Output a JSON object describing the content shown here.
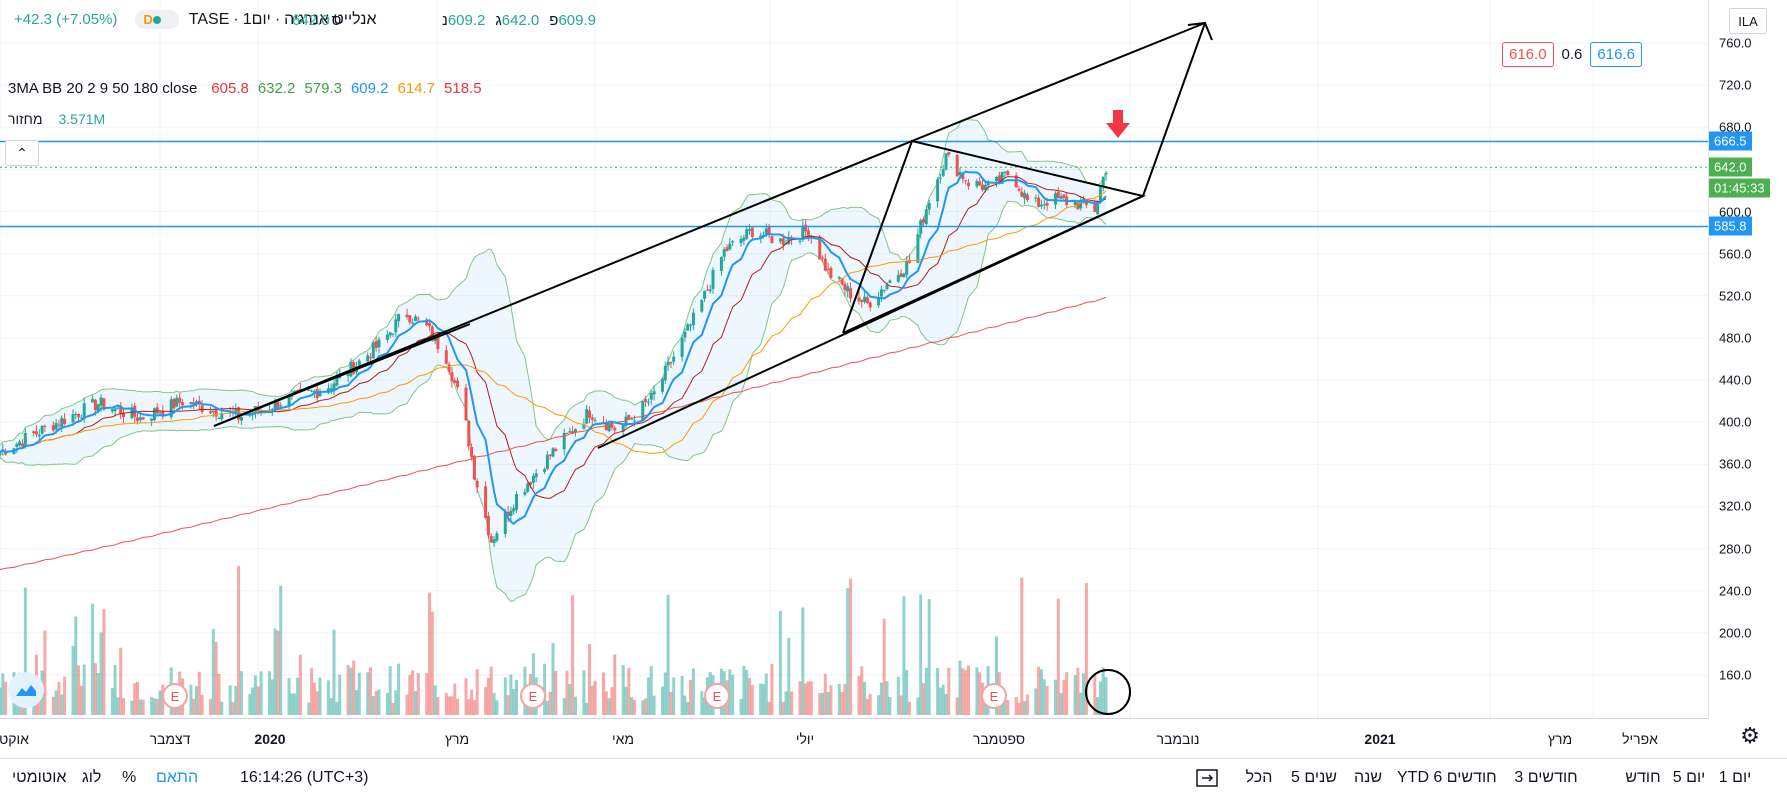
{
  "header": {
    "company": "אנלייט אנרגיה",
    "interval": "יום1",
    "exchange": "TASE",
    "delay_badge": "D",
    "ohlc": {
      "o_label": "פ",
      "o": "609.9",
      "h_label": "ג",
      "h": "642.0",
      "l_label": "נ",
      "l": "609.2",
      "c_label": "ס",
      "c": "642.0",
      "change": "+42.3 (+7.05%)"
    }
  },
  "indicators": {
    "name": "3MA BB 20 2 9 50 180 close",
    "values": [
      "605.8",
      "632.2",
      "579.3",
      "609.2",
      "614.7",
      "518.5"
    ],
    "colors": [
      "#e53935",
      "#43a047",
      "#43a047",
      "#2196f3",
      "#ff9800",
      "#e53935"
    ]
  },
  "volume": {
    "label": "מחזור",
    "value": "3.571M"
  },
  "bid_ask": {
    "bid": "616.0",
    "spread": "0.6",
    "ask": "616.6"
  },
  "price_axis": {
    "currency": "ILA",
    "ticks": [
      "760.0",
      "720.0",
      "680.0",
      "600.0",
      "560.0",
      "520.0",
      "480.0",
      "440.0",
      "400.0",
      "360.0",
      "320.0",
      "280.0",
      "240.0",
      "200.0",
      "160.0"
    ],
    "labels": [
      {
        "text": "666.5",
        "color": "#2196f3"
      },
      {
        "text": "642.0",
        "color": "#4caf50"
      },
      {
        "text": "01:45:33",
        "color": "#4caf50"
      },
      {
        "text": "585.8",
        "color": "#2196f3"
      }
    ]
  },
  "time_axis": [
    "אוקט",
    "דצמבר",
    "2020",
    "מרץ",
    "מאי",
    "יולי",
    "ספטמבר",
    "נובמבר",
    "2021",
    "מרץ",
    "אפריל"
  ],
  "events_label": "E",
  "bottom_bar": {
    "ranges": [
      "יום 1",
      "5 יום",
      "חודש",
      "3 חודשים",
      "6 חודשים",
      "YTD",
      "שנה",
      "5 שנים",
      "הכל"
    ],
    "clock": "16:14:26 (UTC+3)",
    "fit": "התאם",
    "percent": "%",
    "log": "לוג",
    "auto": "אוטומטי"
  },
  "chart_data": {
    "type": "candlestick",
    "title": "אנלייט אנרגיה",
    "y_unit": "ILA",
    "ylim": [
      120,
      780
    ],
    "x_range": [
      "2019-10",
      "2021-04"
    ],
    "horizontal_levels": [
      666.5,
      585.8
    ],
    "last_price": 642.0,
    "close_path": [
      [
        "2019-10-01",
        372
      ],
      [
        "2019-10-20",
        398
      ],
      [
        "2019-11-05",
        418
      ],
      [
        "2019-11-20",
        404
      ],
      [
        "2019-12-05",
        420
      ],
      [
        "2019-12-25",
        405
      ],
      [
        "2020-01-10",
        420
      ],
      [
        "2020-01-25",
        432
      ],
      [
        "2020-02-05",
        455
      ],
      [
        "2020-02-15",
        478
      ],
      [
        "2020-02-22",
        505
      ],
      [
        "2020-03-01",
        490
      ],
      [
        "2020-03-08",
        462
      ],
      [
        "2020-03-14",
        412
      ],
      [
        "2020-03-18",
        352
      ],
      [
        "2020-03-24",
        288
      ],
      [
        "2020-04-02",
        330
      ],
      [
        "2020-04-15",
        372
      ],
      [
        "2020-04-28",
        410
      ],
      [
        "2020-05-08",
        392
      ],
      [
        "2020-05-20",
        422
      ],
      [
        "2020-06-05",
        502
      ],
      [
        "2020-06-15",
        562
      ],
      [
        "2020-06-25",
        582
      ],
      [
        "2020-07-05",
        572
      ],
      [
        "2020-07-15",
        582
      ],
      [
        "2020-07-22",
        542
      ],
      [
        "2020-07-30",
        522
      ],
      [
        "2020-08-05",
        512
      ],
      [
        "2020-08-12",
        532
      ],
      [
        "2020-08-20",
        552
      ],
      [
        "2020-08-27",
        612
      ],
      [
        "2020-09-02",
        652
      ],
      [
        "2020-09-10",
        628
      ],
      [
        "2020-09-18",
        622
      ],
      [
        "2020-09-25",
        638
      ],
      [
        "2020-10-02",
        605
      ],
      [
        "2020-10-10",
        612
      ],
      [
        "2020-10-18",
        608
      ],
      [
        "2020-10-25",
        602
      ],
      [
        "2020-10-29",
        642
      ]
    ],
    "moving_averages": [
      {
        "name": "MA9",
        "color": "#2196f3",
        "last": 609.2
      },
      {
        "name": "MA50",
        "color": "#ff9800",
        "last": 614.7
      },
      {
        "name": "MA180",
        "color": "#e53935",
        "last": 518.5
      }
    ],
    "bollinger": {
      "basis": 605.8,
      "upper": 632.2,
      "lower": 579.3
    },
    "last_volume": "3.571M",
    "earnings_markers": [
      "2019-12",
      "2020-03",
      "2020-06",
      "2020-09"
    ]
  }
}
